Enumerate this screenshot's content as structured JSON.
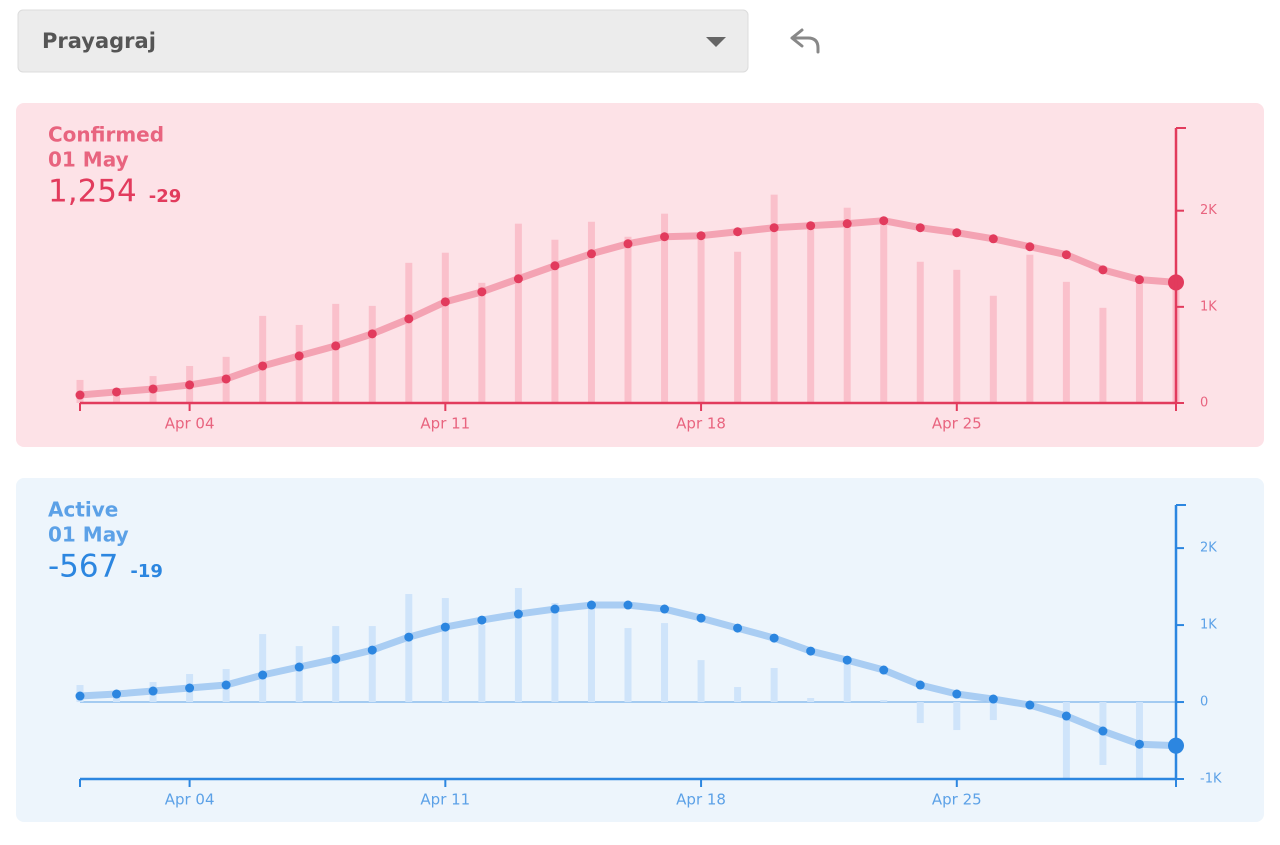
{
  "dropdown": {
    "selected": "Prayagraj"
  },
  "chart_data": [
    {
      "type": "line",
      "title": "Confirmed",
      "date": "01 May",
      "value_label": "1,254",
      "delta_label": "-29",
      "color": "#e23b5d",
      "background": "#fde2e7",
      "line_color": "#f4a3b3",
      "bar_color": "#fac0cb",
      "categories": [
        null,
        null,
        null,
        "Apr 04",
        null,
        null,
        null,
        null,
        null,
        null,
        "Apr 11",
        null,
        null,
        null,
        null,
        null,
        null,
        "Apr 18",
        null,
        null,
        null,
        null,
        null,
        null,
        "Apr 25",
        null,
        null,
        null,
        null,
        null,
        null
      ],
      "bars": {
        "values": [
          240,
          135,
          280,
          385,
          480,
          906,
          812,
          1031,
          1010,
          1458,
          1563,
          1250,
          1865,
          1698,
          1885,
          1729,
          1969,
          1750,
          1573,
          2167,
          1833,
          2031,
          1927,
          1469,
          1385,
          1115,
          1542,
          1260,
          990,
          1302,
          1200
        ]
      },
      "series": [
        {
          "values": [
            83,
            115,
            146,
            188,
            250,
            385,
            490,
            594,
            719,
            875,
            1052,
            1156,
            1292,
            1427,
            1552,
            1656,
            1729,
            1740,
            1781,
            1823,
            1844,
            1865,
            1896,
            1823,
            1771,
            1708,
            1625,
            1542,
            1385,
            1283,
            1254
          ]
        }
      ],
      "ylim": [
        0,
        2860
      ],
      "yticks": [
        0,
        {
          "value": 1000,
          "label": "1K"
        },
        {
          "value": 2000,
          "label": "2K"
        }
      ]
    },
    {
      "type": "line",
      "title": "Active",
      "date": "01 May",
      "value_label": "-567",
      "delta_label": "-19",
      "color": "#2c86e0",
      "background": "#edf5fc",
      "line_color": "#a9cdf3",
      "bar_color": "#cfe4fa",
      "categories": [
        null,
        null,
        null,
        "Apr 04",
        null,
        null,
        null,
        null,
        null,
        null,
        "Apr 11",
        null,
        null,
        null,
        null,
        null,
        null,
        "Apr 18",
        null,
        null,
        null,
        null,
        null,
        null,
        "Apr 25",
        null,
        null,
        null,
        null,
        null,
        null
      ],
      "bars": {
        "values": [
          221,
          65,
          260,
          364,
          429,
          883,
          727,
          987,
          987,
          1403,
          1351,
          1000,
          1481,
          1286,
          1273,
          961,
          1026,
          545,
          195,
          442,
          52,
          545,
          26,
          -273,
          -364,
          -234,
          0,
          -987,
          -818,
          -987,
          0
        ]
      },
      "series": [
        {
          "values": [
            78,
            104,
            143,
            182,
            221,
            351,
            455,
            558,
            675,
            844,
            974,
            1065,
            1143,
            1208,
            1260,
            1260,
            1208,
            1091,
            961,
            831,
            662,
            545,
            416,
            221,
            104,
            39,
            -39,
            -182,
            -377,
            -548,
            -567
          ]
        }
      ],
      "ylim": [
        -1000,
        2560
      ],
      "yticks": [
        {
          "value": -1000,
          "label": "-1K"
        },
        0,
        {
          "value": 1000,
          "label": "1K"
        },
        {
          "value": 2000,
          "label": "2K"
        }
      ]
    }
  ]
}
